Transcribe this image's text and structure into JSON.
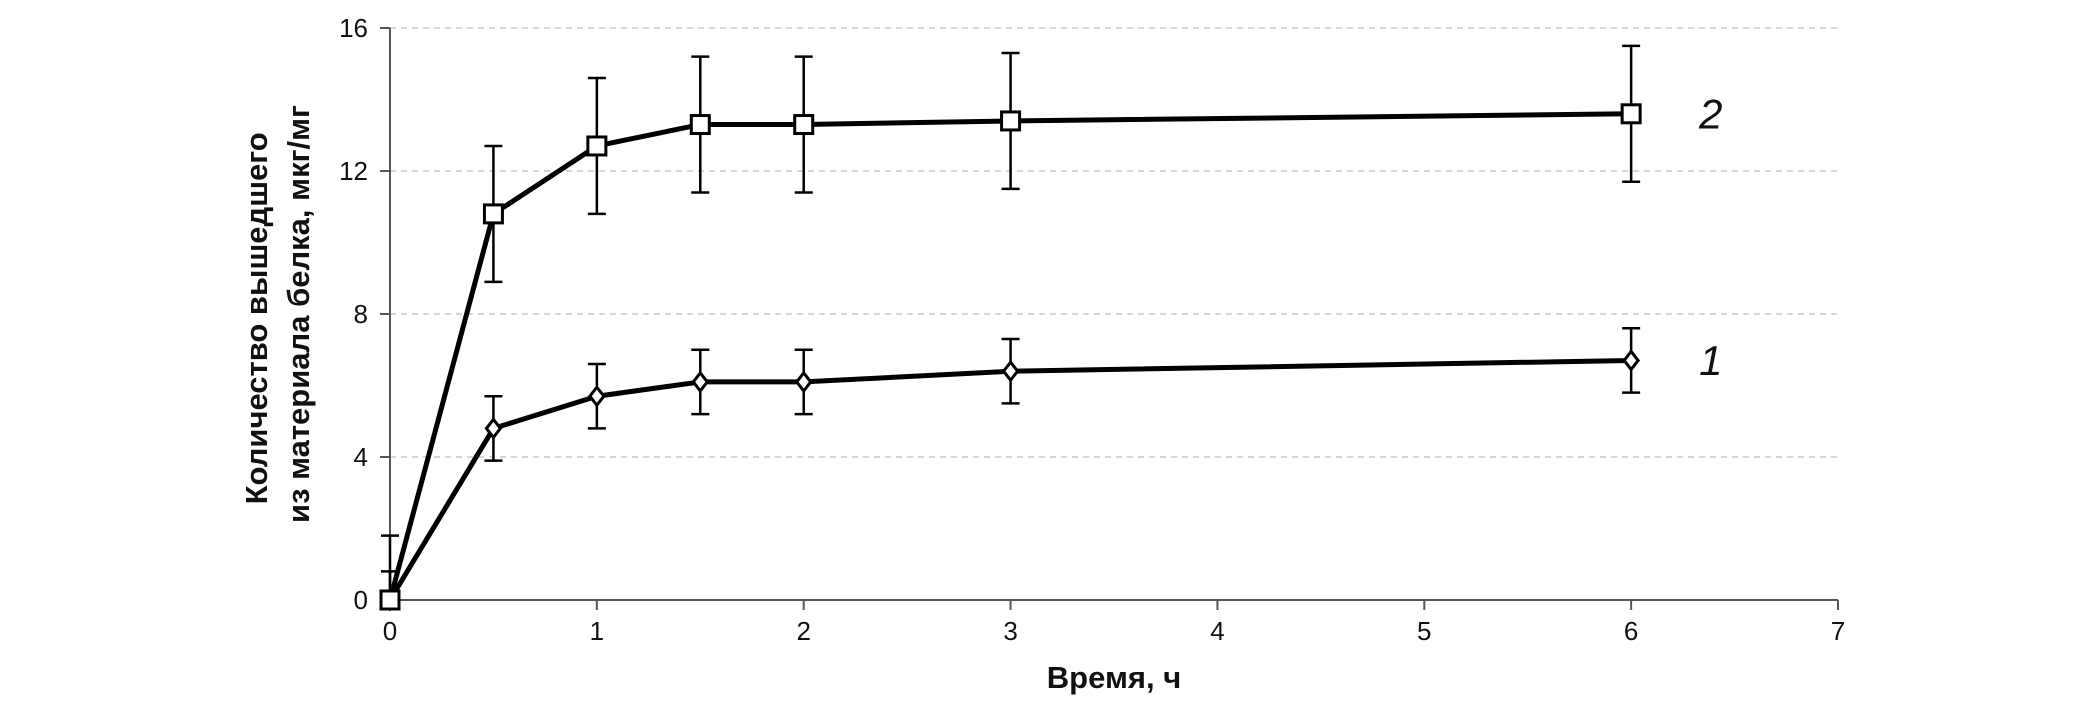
{
  "chart_data": {
    "type": "line",
    "title": "",
    "xlabel": "Время, ч",
    "ylabel": "Количество вышедшего из материала белка, мкг/мг",
    "ylabel_lines": [
      "Количество вышедшего",
      "из материала белка, мкг/мг"
    ],
    "xlim": [
      0,
      7
    ],
    "ylim": [
      0,
      16
    ],
    "x_ticks": [
      0,
      1,
      2,
      3,
      4,
      5,
      6,
      7
    ],
    "x_tick_labels": [
      "0",
      "1",
      "2",
      "3",
      "4",
      "5",
      "6",
      "7"
    ],
    "y_ticks": [
      0,
      4,
      8,
      12,
      16
    ],
    "y_tick_labels": [
      "0",
      "4",
      "8",
      "12",
      "16"
    ],
    "grid": "horizontal dashed",
    "legend": "inline labels at line ends",
    "series": [
      {
        "name": "1",
        "marker": "diamond",
        "x": [
          0,
          0.5,
          1,
          1.5,
          2,
          3,
          6
        ],
        "y": [
          0,
          4.8,
          5.7,
          6.1,
          6.1,
          6.4,
          6.7
        ],
        "error": [
          0.8,
          0.9,
          0.9,
          0.9,
          0.9,
          0.9,
          0.9
        ]
      },
      {
        "name": "2",
        "marker": "square",
        "x": [
          0,
          0.5,
          1,
          1.5,
          2,
          3,
          6
        ],
        "y": [
          0,
          10.8,
          12.7,
          13.3,
          13.3,
          13.4,
          13.6
        ],
        "error": [
          1.8,
          1.9,
          1.9,
          1.9,
          1.9,
          1.9,
          1.9
        ]
      }
    ],
    "colors": {
      "line": "#000000",
      "grid": "#c8c8c8",
      "axis": "#555555",
      "marker_fill": "#ffffff"
    }
  }
}
